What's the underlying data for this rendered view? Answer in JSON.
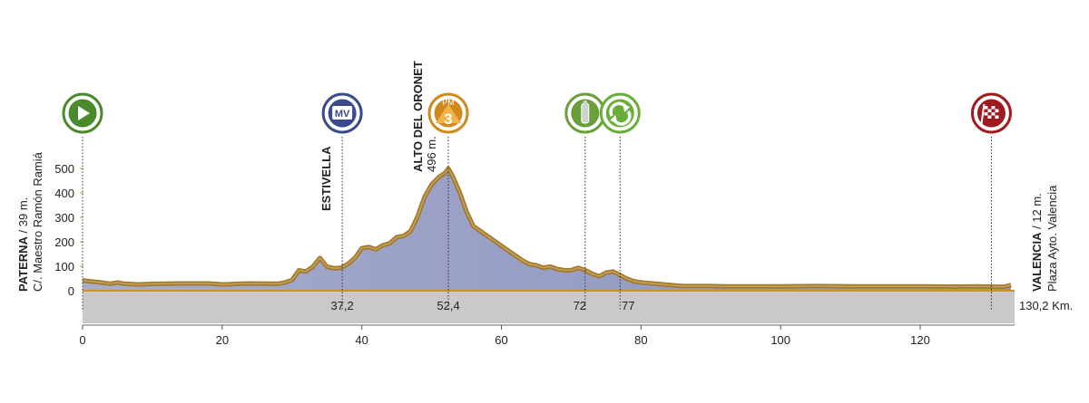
{
  "chart_data": {
    "type": "area",
    "xlim": [
      0,
      133
    ],
    "ylim": [
      0,
      500
    ],
    "x_ticks": [
      0,
      20,
      40,
      60,
      80,
      100,
      120
    ],
    "y_ticks": [
      0,
      100,
      200,
      300,
      400,
      500
    ],
    "distance_total_label": "130,2 Km.",
    "profile": {
      "x": [
        0,
        1,
        2,
        3,
        4,
        5,
        6,
        8,
        10,
        12,
        14,
        16,
        18,
        20,
        22,
        24,
        26,
        28,
        29,
        30,
        31,
        32,
        33,
        34,
        35,
        36,
        37,
        38,
        39,
        40,
        41,
        42,
        43,
        44,
        45,
        46,
        47,
        48,
        49,
        50,
        51,
        52,
        52.4,
        53,
        54,
        55,
        56,
        57,
        58,
        59,
        60,
        61,
        62,
        63,
        64,
        65,
        66,
        67,
        68,
        69,
        70,
        71,
        72,
        73,
        74,
        75,
        76,
        77,
        78,
        79,
        80,
        82,
        84,
        86,
        88,
        90,
        92,
        95,
        100,
        105,
        110,
        115,
        120,
        125,
        128,
        130,
        132,
        133
      ],
      "y": [
        39,
        35,
        32,
        28,
        25,
        30,
        25,
        22,
        24,
        25,
        26,
        26,
        26,
        22,
        24,
        26,
        25,
        25,
        30,
        40,
        80,
        75,
        95,
        130,
        95,
        88,
        90,
        105,
        130,
        170,
        175,
        165,
        182,
        190,
        215,
        220,
        240,
        300,
        380,
        430,
        460,
        480,
        496,
        465,
        400,
        320,
        260,
        240,
        220,
        200,
        180,
        160,
        140,
        120,
        105,
        100,
        90,
        95,
        85,
        80,
        80,
        90,
        80,
        65,
        55,
        70,
        75,
        60,
        45,
        35,
        30,
        25,
        20,
        15,
        15,
        15,
        14,
        14,
        14,
        15,
        14,
        14,
        14,
        13,
        14,
        13,
        12,
        20
      ]
    },
    "markers": [
      {
        "x": 0,
        "icon": "start-flag-icon",
        "color": "#4a8a2c",
        "labels": []
      },
      {
        "x": 37.2,
        "icon": "mv-sprint-icon",
        "color": "#3a4a8c",
        "labels": [
          {
            "text": "ESTIVELLA",
            "bold": true
          }
        ],
        "km_label": "37,2"
      },
      {
        "x": 52.4,
        "icon": "mountain-3-icon",
        "color": "#d08a1c",
        "labels": [
          {
            "text": "ALTO DEL ORONET",
            "bold": true
          },
          {
            "text": "496 m.",
            "bold": false
          }
        ],
        "km_label": "52,4"
      },
      {
        "x": 72,
        "icon": "feed-bottle-icon",
        "color": "#6a9e3a",
        "labels": [],
        "km_label": "72"
      },
      {
        "x": 77,
        "icon": "recycle-icon",
        "color": "#6aae3a",
        "labels": [],
        "km_label": "77"
      },
      {
        "x": 130.2,
        "icon": "finish-flag-icon",
        "color": "#a01a20",
        "labels": []
      }
    ],
    "icon_texts": {
      "mv": "MV",
      "pm": "PM",
      "category": "3"
    },
    "start": {
      "name": "PATERNA",
      "altitude": "/ 39 m.",
      "place": "C/. Maestro Ramón Ramiá"
    },
    "finish": {
      "name": "VALENCIA",
      "altitude": "/ 12 m.",
      "place": "Plaza Ayto. Valencia"
    },
    "colors": {
      "fill_top": "#9aa2c8",
      "fill_bottom": "#9aa0c0",
      "outline": "#a07830",
      "outline_light": "#c8a458",
      "band": "#c9c9cc",
      "baseline": "#c8922c"
    }
  }
}
